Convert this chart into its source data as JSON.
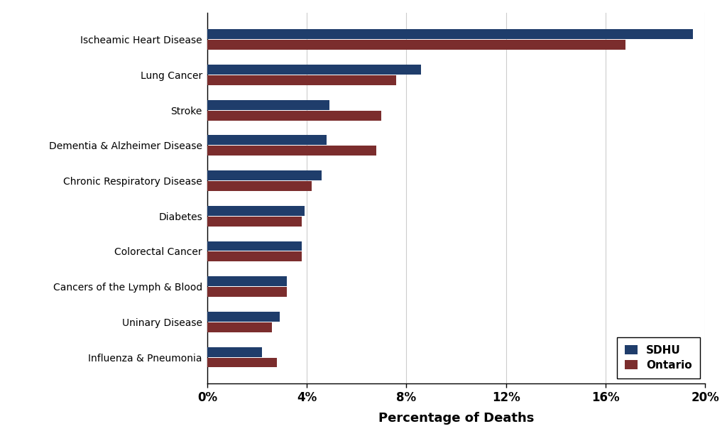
{
  "categories": [
    "Influenza & Pneumonia",
    "Uninary Disease",
    "Cancers of the Lymph & Blood",
    "Colorectal Cancer",
    "Diabetes",
    "Chronic Respiratory Disease",
    "Dementia & Alzheimer Disease",
    "Stroke",
    "Lung Cancer",
    "Ischeamic Heart Disease"
  ],
  "sdhu_values": [
    2.2,
    2.9,
    3.2,
    3.8,
    3.9,
    4.6,
    4.8,
    4.9,
    8.6,
    19.5
  ],
  "ontario_values": [
    2.8,
    2.6,
    3.2,
    3.8,
    3.8,
    4.2,
    6.8,
    7.0,
    7.6,
    16.8
  ],
  "sdhu_color": "#1f3d6b",
  "ontario_color": "#7b2d2d",
  "xlabel": "Percentage of Deaths",
  "xlim": [
    0,
    20
  ],
  "xticks": [
    0,
    4,
    8,
    12,
    16,
    20
  ],
  "xtick_labels": [
    "0%",
    "4%",
    "8%",
    "12%",
    "16%",
    "20%"
  ],
  "legend_labels": [
    "SDHU",
    "Ontario"
  ],
  "bar_height": 0.28,
  "background_color": "#ffffff",
  "grid_color": "#cccccc"
}
